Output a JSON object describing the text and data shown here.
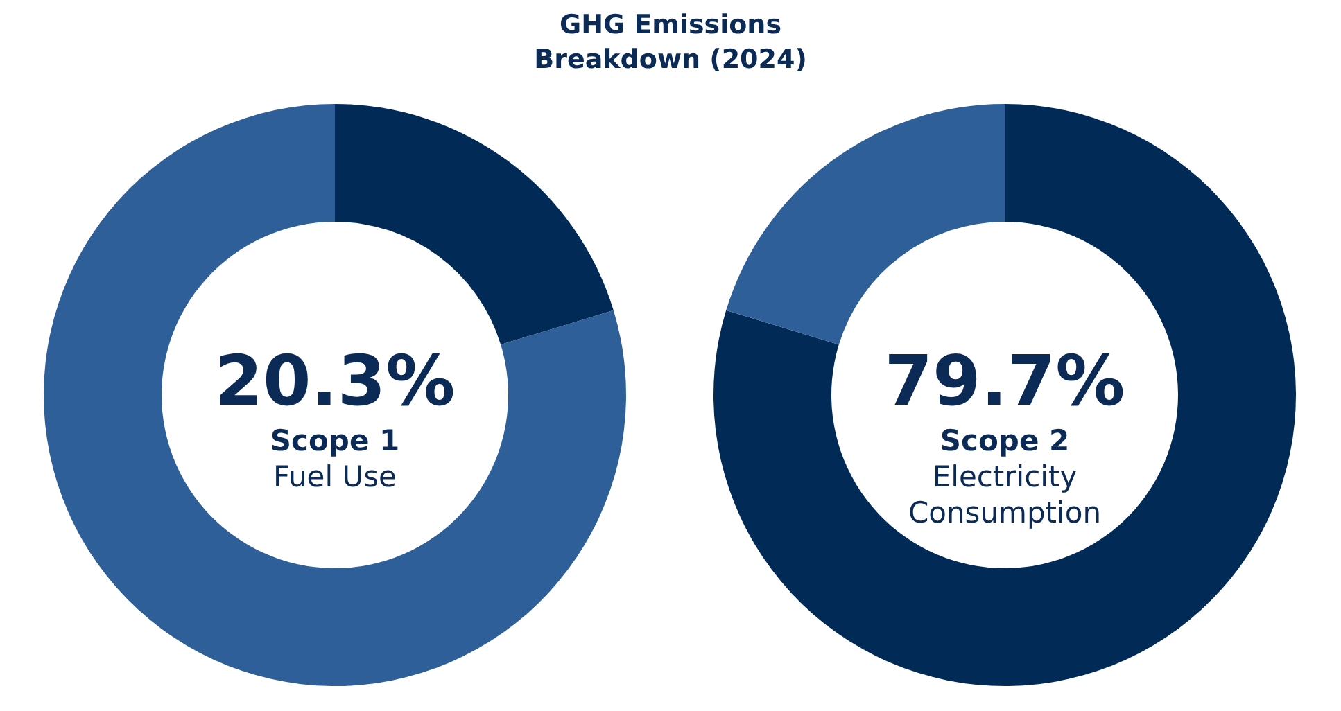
{
  "chart_data": [
    {
      "type": "donut",
      "title": "GHG Emissions Breakdown (2024)",
      "categories": [
        "Scope 1",
        null
      ],
      "values": [
        20.3,
        79.7
      ],
      "value_labels": [
        "20.3%",
        null
      ],
      "colors": [
        "#022a56",
        "#2f5f98"
      ],
      "annotations": [
        "Fuel Use"
      ]
    },
    {
      "type": "donut",
      "categories": [
        "Scope 2",
        null
      ],
      "values": [
        79.7,
        20.3
      ],
      "value_labels": [
        "79.7%",
        null
      ],
      "colors": [
        "#022a56",
        "#2f5f98"
      ],
      "annotations": [
        "Electricity Consumption"
      ]
    }
  ]
}
